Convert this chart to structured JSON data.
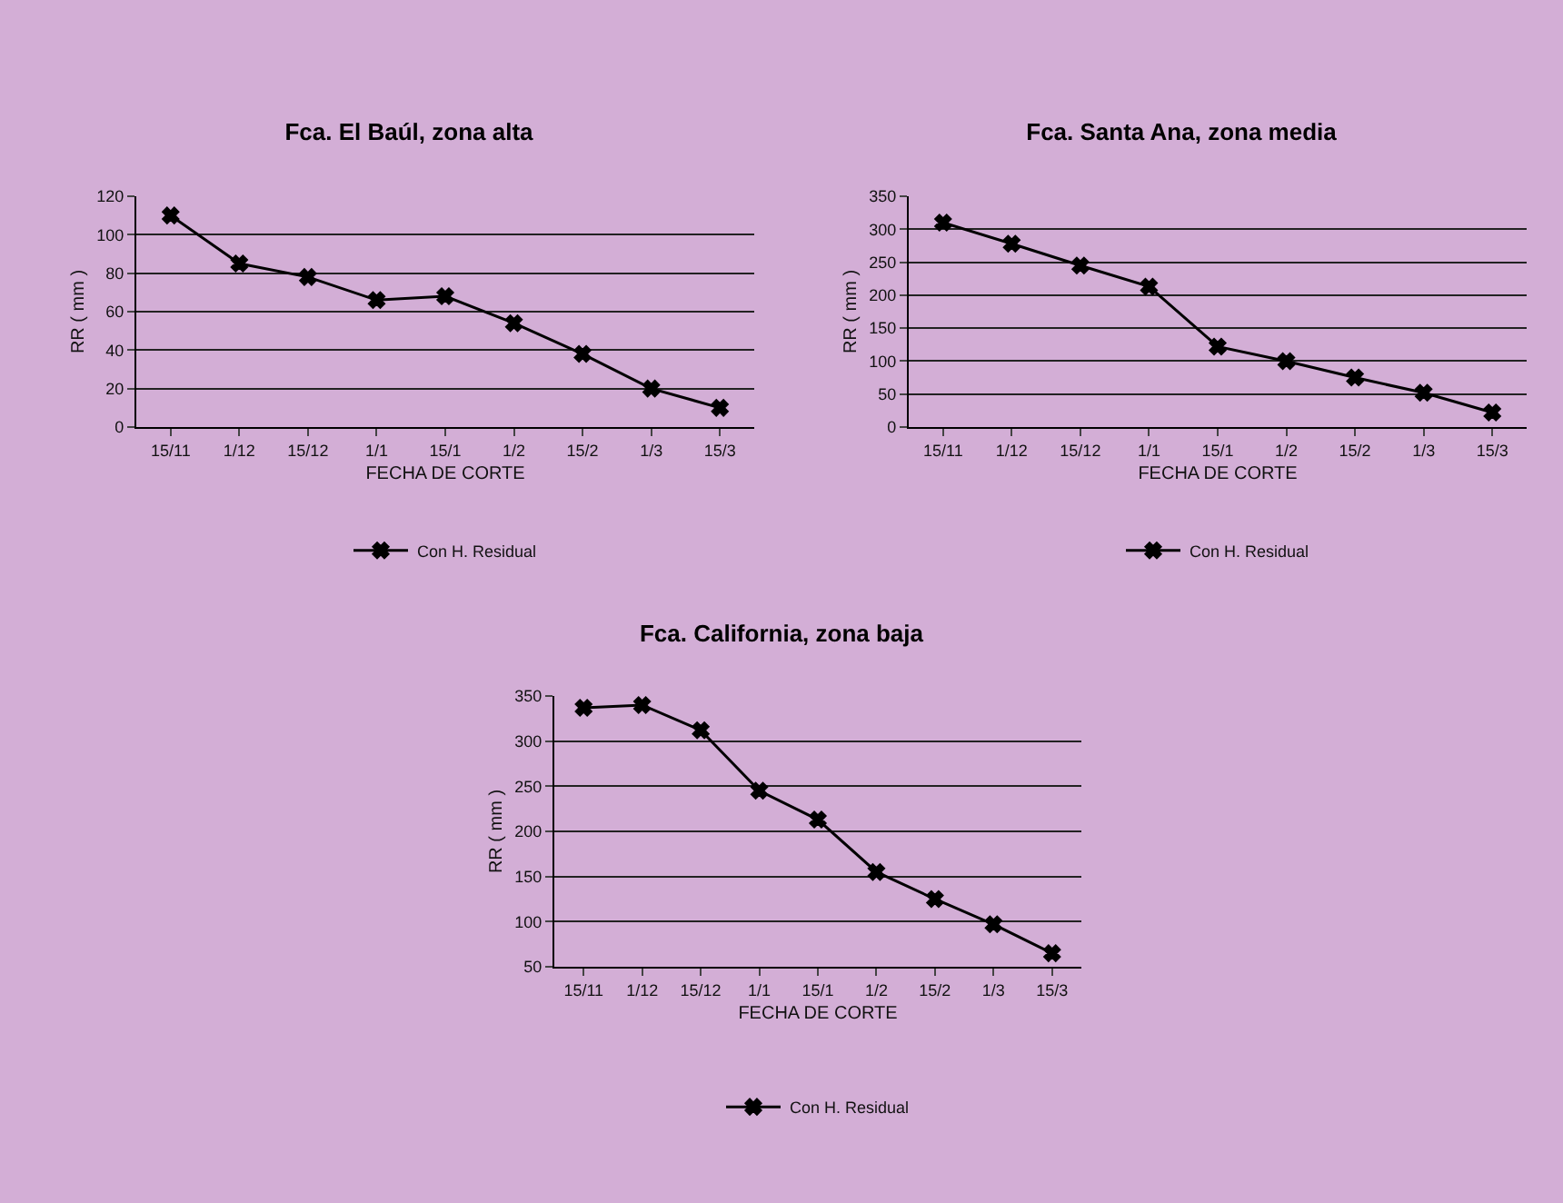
{
  "chart_data": [
    {
      "type": "line",
      "title": "Fca. El Baúl, zona alta",
      "xlabel": "FECHA DE CORTE",
      "ylabel": "RR ( mm )",
      "categories": [
        "15/11",
        "1/12",
        "15/12",
        "1/1",
        "15/1",
        "1/2",
        "15/2",
        "1/3",
        "15/3"
      ],
      "series": [
        {
          "name": "Con H. Residual",
          "color": "#000000",
          "values": [
            110,
            85,
            78,
            66,
            68,
            54,
            38,
            20,
            10
          ]
        }
      ],
      "ylim": [
        0,
        120
      ],
      "yticks": [
        0,
        20,
        40,
        60,
        80,
        100,
        120
      ],
      "grid": "y",
      "legend": "bottom",
      "marker": "cross"
    },
    {
      "type": "line",
      "title": "Fca. Santa Ana, zona media",
      "xlabel": "FECHA DE CORTE",
      "ylabel": "RR ( mm )",
      "categories": [
        "15/11",
        "1/12",
        "15/12",
        "1/1",
        "15/1",
        "1/2",
        "15/2",
        "1/3",
        "15/3"
      ],
      "series": [
        {
          "name": "Con H. Residual",
          "color": "#000000",
          "values": [
            310,
            278,
            245,
            213,
            122,
            100,
            75,
            52,
            22
          ]
        }
      ],
      "ylim": [
        0,
        350
      ],
      "yticks": [
        0,
        50,
        100,
        150,
        200,
        250,
        300,
        350
      ],
      "grid": "y",
      "legend": "bottom",
      "marker": "cross"
    },
    {
      "type": "line",
      "title": "Fca. California, zona baja",
      "xlabel": "FECHA DE CORTE",
      "ylabel": "RR ( mm )",
      "categories": [
        "15/11",
        "1/12",
        "15/12",
        "1/1",
        "15/1",
        "1/2",
        "15/2",
        "1/3",
        "15/3"
      ],
      "series": [
        {
          "name": "Con H. Residual",
          "color": "#000000",
          "values": [
            337,
            340,
            312,
            245,
            213,
            155,
            125,
            97,
            65
          ]
        }
      ],
      "ylim": [
        50,
        350
      ],
      "yticks": [
        50,
        100,
        150,
        200,
        250,
        300,
        350
      ],
      "grid": "y",
      "legend": "bottom",
      "marker": "cross"
    }
  ]
}
